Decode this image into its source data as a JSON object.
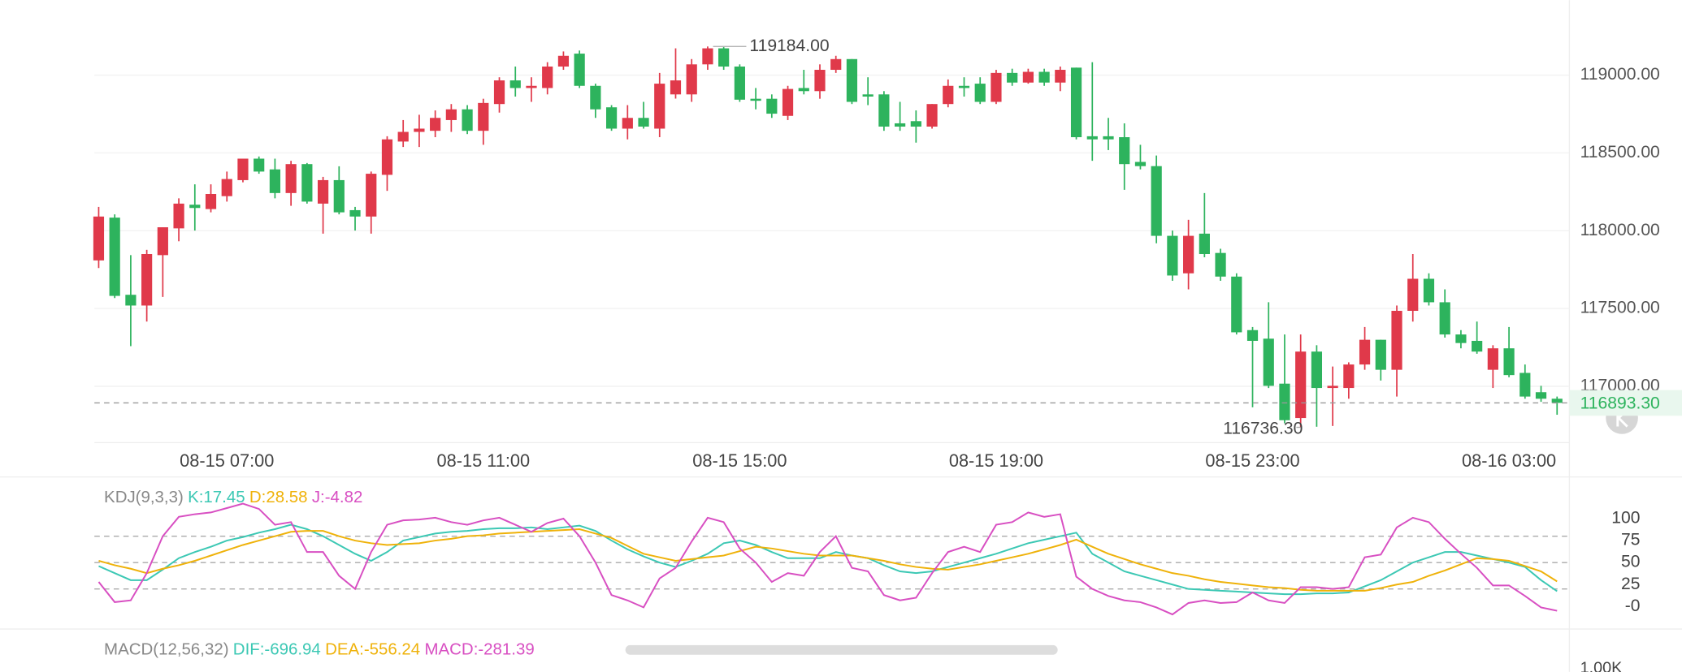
{
  "chart_data": [
    {
      "type": "candlestick",
      "categories": [
        null,
        null,
        null,
        null,
        null,
        null,
        null,
        null,
        "08-15 07:00",
        null,
        null,
        null,
        null,
        null,
        null,
        null,
        null,
        null,
        null,
        null,
        null,
        null,
        null,
        null,
        "08-15 11:00",
        null,
        null,
        null,
        null,
        null,
        null,
        null,
        null,
        null,
        null,
        null,
        null,
        null,
        null,
        null,
        "08-15 15:00",
        null,
        null,
        null,
        null,
        null,
        null,
        null,
        null,
        null,
        null,
        null,
        null,
        null,
        null,
        null,
        "08-15 19:00",
        null,
        null,
        null,
        null,
        null,
        null,
        null,
        null,
        null,
        null,
        null,
        null,
        null,
        null,
        null,
        "08-15 23:00",
        null,
        null,
        null,
        null,
        null,
        null,
        null,
        null,
        null,
        null,
        null,
        null,
        null,
        null,
        null,
        "08-16 03:00",
        null,
        null,
        null
      ],
      "open": [
        117809,
        118084,
        117588,
        117519,
        117843,
        118015,
        118167,
        118139,
        118222,
        118325,
        118463,
        118394,
        118242,
        118428,
        118174,
        118325,
        118132,
        118091,
        118359,
        118573,
        118635,
        118642,
        118711,
        118780,
        118642,
        118814,
        118966,
        118917,
        118917,
        119055,
        119138,
        118931,
        118793,
        118656,
        118725,
        118656,
        118876,
        118876,
        119069,
        119172,
        119055,
        118848,
        118848,
        118738,
        118917,
        118897,
        119034,
        119103,
        118876,
        118876,
        118690,
        118704,
        118669,
        118814,
        118931,
        118945,
        118828,
        119014,
        118952,
        119021,
        118952,
        119048,
        118607,
        118607,
        118601,
        118442,
        118415,
        117967,
        117726,
        117981,
        117857,
        117705,
        117361,
        117306,
        117017,
        116796,
        117223,
        116989,
        116989,
        117140,
        117299,
        117106,
        117485,
        117691,
        117540,
        117333,
        117292,
        117106,
        117244,
        117086,
        116962,
        116920
      ],
      "high": [
        118153,
        118105,
        117843,
        117877,
        118022,
        118208,
        118298,
        118298,
        118380,
        118463,
        118477,
        118463,
        118449,
        118435,
        118346,
        118414,
        118153,
        118380,
        118607,
        118711,
        118745,
        118773,
        118814,
        118807,
        118848,
        118986,
        119055,
        118986,
        119083,
        119152,
        119158,
        118945,
        118807,
        118807,
        118828,
        119014,
        119172,
        119103,
        119184,
        119180,
        119069,
        118917,
        118876,
        118931,
        119034,
        119069,
        119124,
        119103,
        118986,
        118897,
        118828,
        118773,
        118814,
        118972,
        118986,
        118986,
        119034,
        119041,
        119041,
        119041,
        119055,
        119048,
        119083,
        118725,
        118690,
        118552,
        118483,
        118001,
        118070,
        118242,
        117884,
        117726,
        117381,
        117540,
        117333,
        117333,
        117264,
        117127,
        117154,
        117381,
        117299,
        117519,
        117850,
        117726,
        117623,
        117361,
        117416,
        117264,
        117381,
        117140,
        117003,
        116934
      ],
      "low": [
        117760,
        117567,
        117258,
        117416,
        117574,
        117932,
        118001,
        118118,
        118187,
        118311,
        118366,
        118208,
        118160,
        118174,
        117981,
        118105,
        118001,
        117981,
        118256,
        118538,
        118538,
        118601,
        118635,
        118621,
        118552,
        118759,
        118862,
        118828,
        118876,
        119034,
        118917,
        118725,
        118642,
        118587,
        118656,
        118601,
        118849,
        118828,
        119034,
        119034,
        118828,
        118780,
        118725,
        118711,
        118876,
        118848,
        119014,
        118814,
        118807,
        118642,
        118642,
        118566,
        118656,
        118793,
        118862,
        118814,
        118814,
        118931,
        118945,
        118931,
        118897,
        118587,
        118449,
        118518,
        118263,
        118394,
        117919,
        117678,
        117623,
        117829,
        117678,
        117333,
        116865,
        116989,
        116762,
        116736.3,
        116740,
        116745,
        116920,
        117106,
        117037,
        116934,
        117416,
        117519,
        117313,
        117244,
        117209,
        116989,
        117058,
        116920,
        116900,
        116817
      ],
      "close": [
        118091,
        117581,
        117519,
        117850,
        118022,
        118174,
        118146,
        118236,
        118332,
        118463,
        118380,
        118242,
        118428,
        118187,
        118325,
        118118,
        118091,
        118366,
        118587,
        118635,
        118656,
        118725,
        118780,
        118642,
        118821,
        118966,
        118917,
        118931,
        119055,
        119124,
        118931,
        118780,
        118656,
        118725,
        118669,
        118945,
        118966,
        119069,
        119172,
        119055,
        118842,
        118835,
        118752,
        118911,
        118897,
        119034,
        119103,
        118828,
        118862,
        118669,
        118669,
        118669,
        118814,
        118931,
        118917,
        118828,
        119014,
        118952,
        119021,
        118952,
        119034,
        118601,
        118587,
        118587,
        118428,
        118415,
        117967,
        117712,
        117967,
        117850,
        117705,
        117347,
        117292,
        117003,
        116782,
        117223,
        116989,
        117003,
        117140,
        117299,
        117106,
        117485,
        117691,
        117540,
        117333,
        117278,
        117223,
        117244,
        117072,
        116934,
        116920,
        116893.3
      ],
      "up_color": "#e0394a",
      "down_color": "#2db35d",
      "ylim": [
        116638,
        119482
      ],
      "yticks": [
        {
          "value": 117000,
          "label": "117000.00"
        },
        {
          "value": 117500,
          "label": "117500.00"
        },
        {
          "value": 118000,
          "label": "118000.00"
        },
        {
          "value": 118500,
          "label": "118500.00"
        },
        {
          "value": 119000,
          "label": "119000.00"
        }
      ],
      "grid": true,
      "current_price": {
        "value": 116893.3,
        "label": "116893.30",
        "color": "#2db35d"
      },
      "annotations": [
        {
          "value": 119184,
          "label": "119184.00"
        },
        {
          "value": 116736.3,
          "label": "116736.30"
        }
      ]
    },
    {
      "type": "line",
      "title": "KDJ(9,3,3)",
      "series": [
        {
          "name": "K:17.45",
          "color": "#3cc8b4",
          "values": [
            46,
            38,
            30,
            30,
            42,
            55,
            62,
            68,
            75,
            79,
            84,
            88,
            93,
            88,
            80,
            70,
            60,
            52,
            62,
            75,
            79,
            83,
            85,
            86,
            88,
            89,
            89,
            90,
            88,
            90,
            92,
            86,
            75,
            65,
            57,
            50,
            45,
            52,
            60,
            72,
            75,
            70,
            62,
            55,
            55,
            55,
            62,
            58,
            55,
            47,
            40,
            38,
            40,
            45,
            50,
            55,
            60,
            66,
            72,
            76,
            80,
            84,
            60,
            50,
            40,
            35,
            30,
            25,
            20,
            19,
            18,
            17,
            16,
            15,
            14,
            14,
            15,
            15,
            16,
            23,
            30,
            40,
            50,
            56,
            62,
            62,
            58,
            54,
            50,
            45,
            30,
            17.45
          ]
        },
        {
          "name": "D:28.58",
          "color": "#efb20a",
          "values": [
            52,
            47,
            43,
            38,
            43,
            47,
            52,
            58,
            64,
            70,
            75,
            80,
            85,
            86,
            86,
            80,
            75,
            72,
            70,
            71,
            72,
            75,
            77,
            80,
            81,
            83,
            84,
            85,
            86,
            87,
            88,
            83,
            78,
            69,
            60,
            56,
            52,
            54,
            56,
            58,
            63,
            68,
            66,
            63,
            60,
            58,
            58,
            58,
            55,
            52,
            48,
            45,
            43,
            42,
            45,
            48,
            52,
            56,
            60,
            65,
            70,
            76,
            68,
            60,
            54,
            48,
            43,
            38,
            35,
            31,
            28,
            26,
            24,
            22,
            21,
            19,
            18,
            18,
            18,
            18,
            21,
            25,
            28,
            35,
            41,
            48,
            55,
            54,
            52,
            46,
            40,
            28.58
          ]
        },
        {
          "name": "J:-4.82",
          "color": "#d84fc2",
          "values": [
            28,
            5,
            7,
            38,
            80,
            102,
            105,
            107,
            112,
            117,
            111,
            93,
            96,
            62,
            62,
            35,
            20,
            62,
            93,
            98,
            99,
            101,
            96,
            93,
            98,
            101,
            93,
            85,
            95,
            100,
            80,
            50,
            13,
            7,
            -1,
            32,
            44,
            74,
            101,
            96,
            66,
            50,
            28,
            38,
            35,
            62,
            80,
            44,
            40,
            13,
            7,
            10,
            38,
            62,
            68,
            62,
            93,
            96,
            107,
            102,
            105,
            34,
            20,
            12,
            7,
            5,
            -1,
            -9,
            4,
            7,
            4,
            5,
            16,
            7,
            4,
            22,
            22,
            20,
            22,
            56,
            59,
            90,
            101,
            96,
            77,
            60,
            44,
            24,
            24,
            12,
            -1,
            -4.82
          ]
        }
      ],
      "ylim": [
        -25.6,
        145
      ],
      "yticks": [
        {
          "value": 0,
          "label": "-0"
        },
        25,
        50,
        75,
        100
      ],
      "reference_lines": [
        20,
        50,
        80
      ]
    },
    {
      "type": "macd",
      "title": "MACD(12,56,32)",
      "series": [
        {
          "name": "DIF:-696.94",
          "color": "#3cc8b4"
        },
        {
          "name": "DEA:-556.24",
          "color": "#efb20a"
        },
        {
          "name": "MACD:-281.39",
          "color": "#d84fc2"
        }
      ],
      "yticks": [
        {
          "value": 1000,
          "label": "1.00K"
        }
      ]
    }
  ]
}
